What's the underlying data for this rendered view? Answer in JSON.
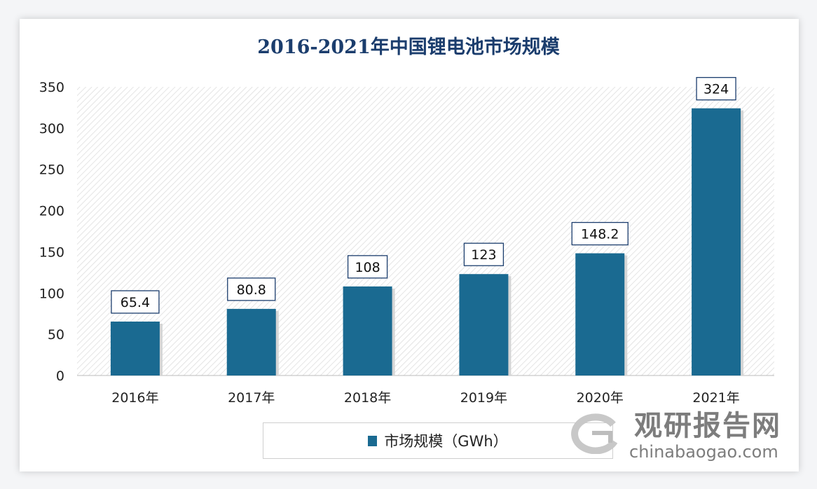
{
  "chart_data": {
    "type": "bar",
    "title": "2016-2021年中国锂电池市场规模",
    "categories": [
      "2016年",
      "2017年",
      "2018年",
      "2019年",
      "2020年",
      "2021年"
    ],
    "series": [
      {
        "name": "市场规模（GWh）",
        "values": [
          65.4,
          80.8,
          108,
          123,
          148.2,
          324
        ]
      }
    ],
    "data_labels": [
      "65.4",
      "80.8",
      "108",
      "123",
      "148.2",
      "324"
    ],
    "yticks": [
      "0",
      "50",
      "100",
      "150",
      "200",
      "250",
      "300",
      "350"
    ],
    "ylim": [
      0,
      350
    ],
    "grid": false,
    "legend": "bottom",
    "bar_color": "#1a6a91"
  },
  "watermark": {
    "cn": "观研报告网",
    "en": "chinabaogao.com"
  }
}
